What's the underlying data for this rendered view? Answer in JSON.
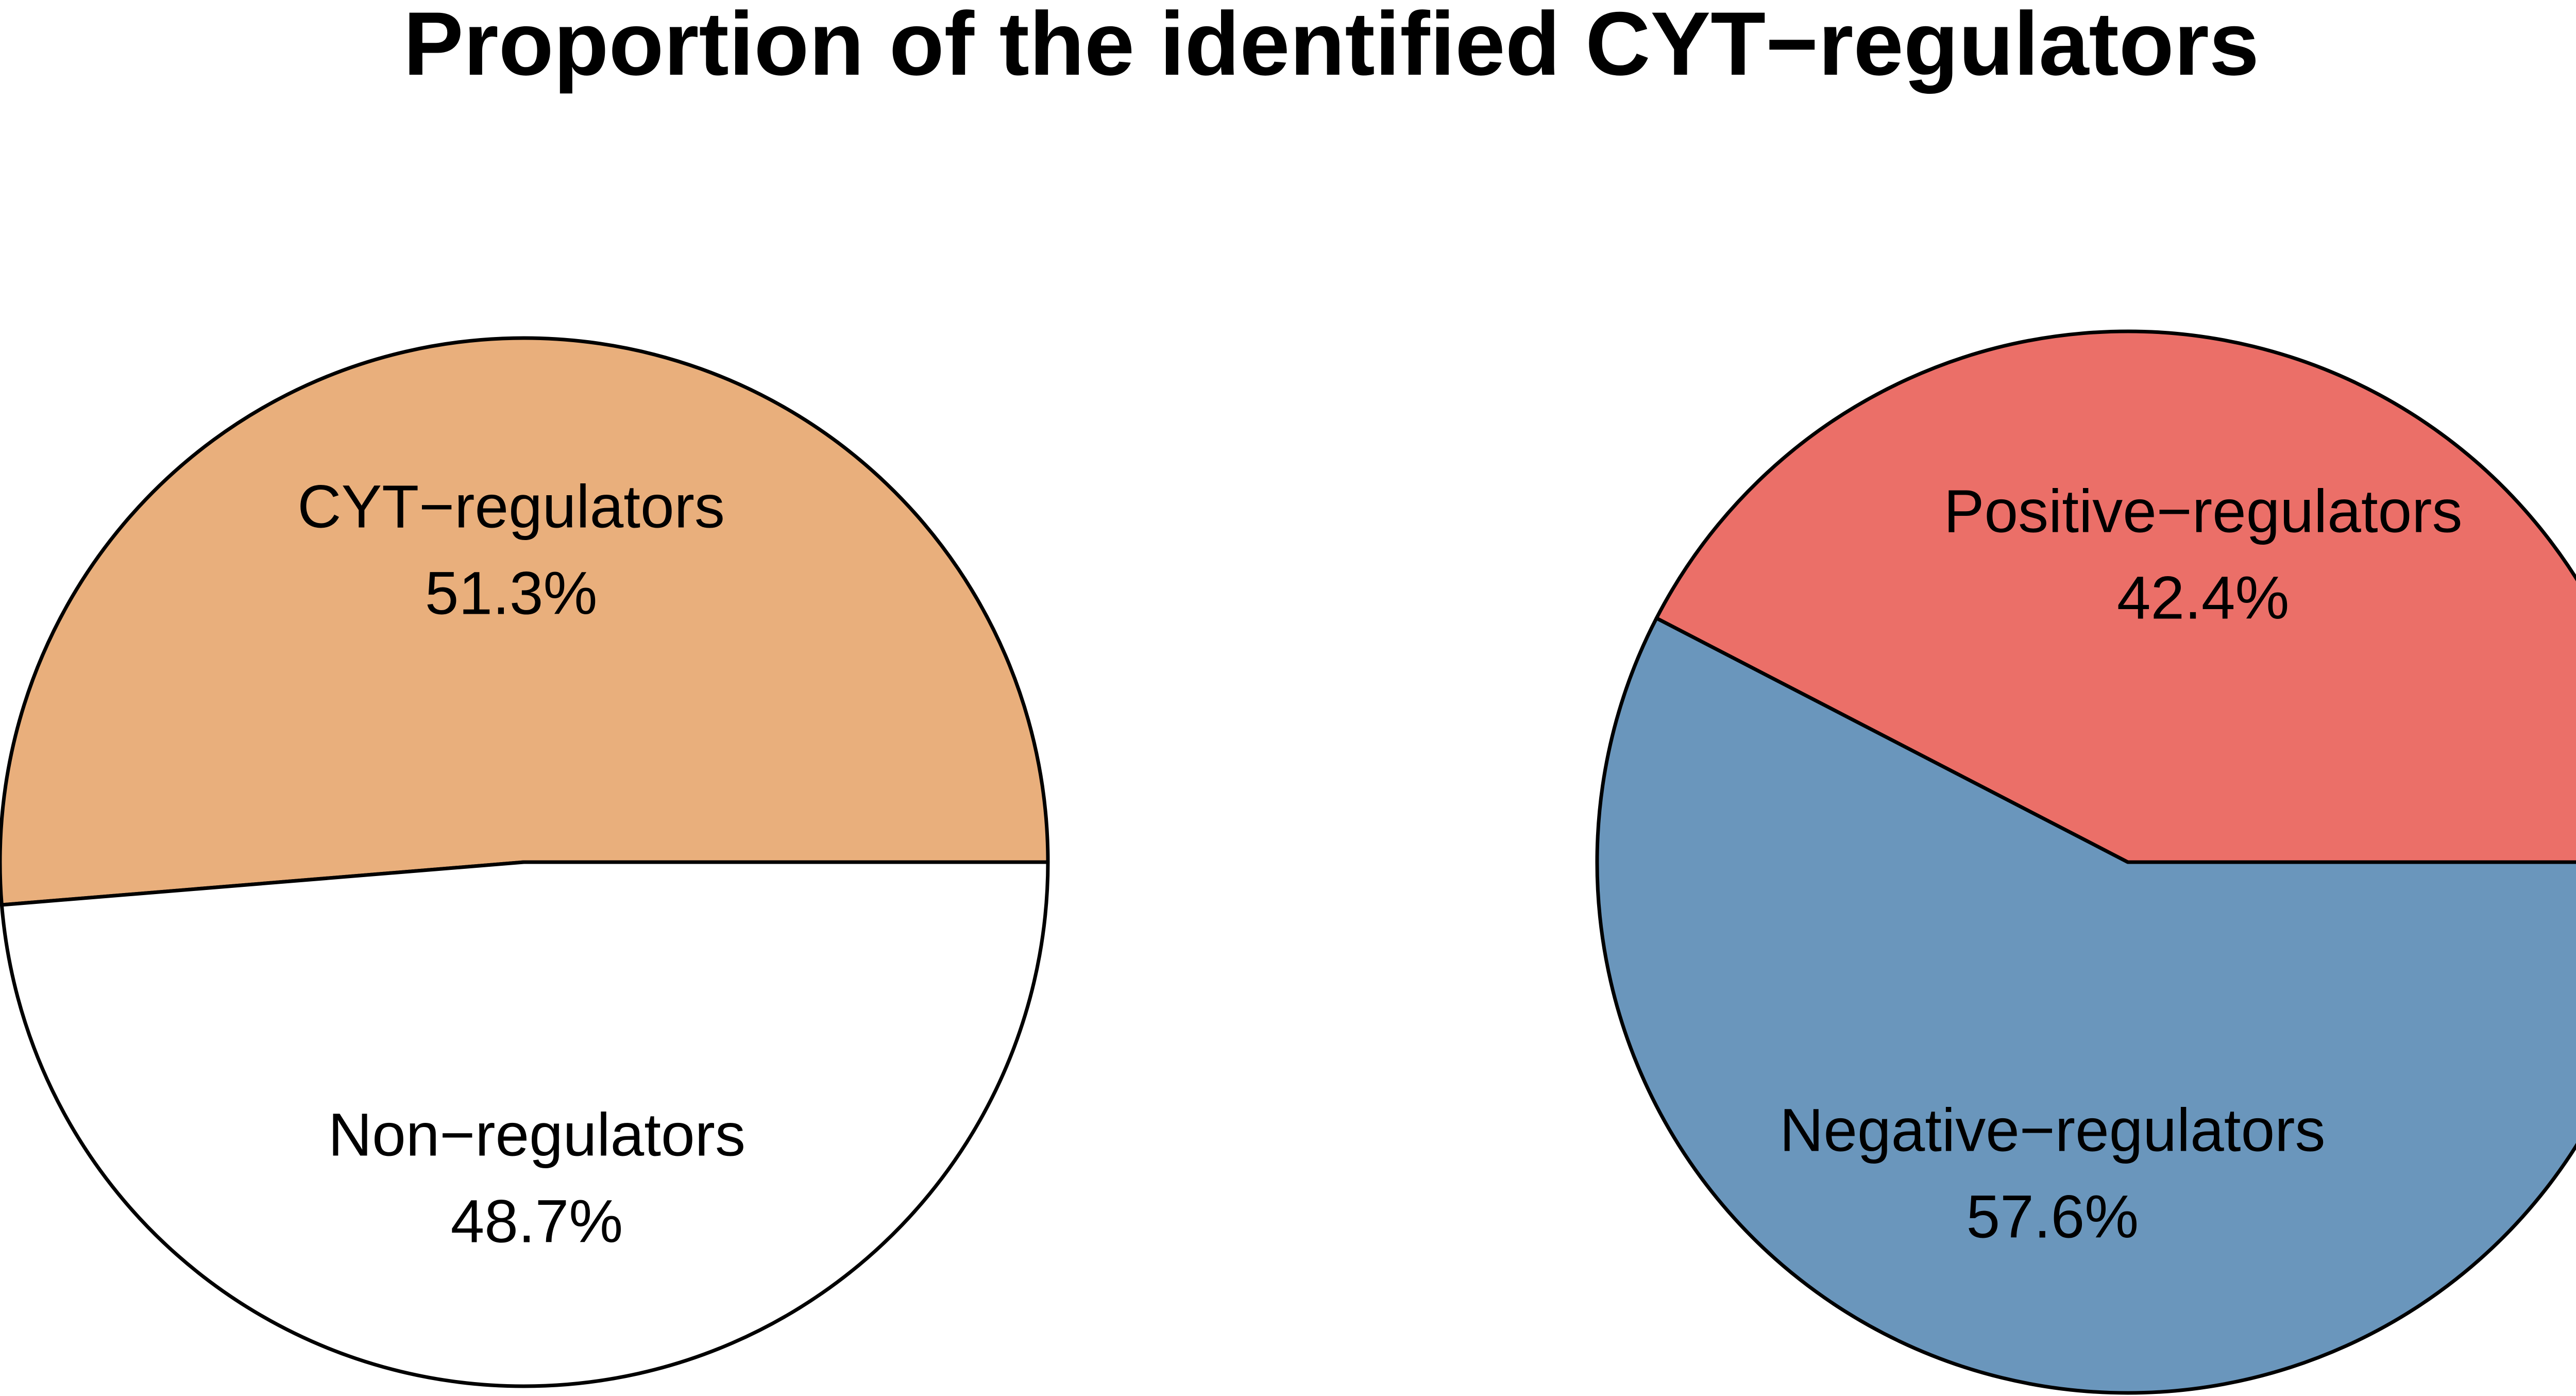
{
  "title": "Proportion of the identified CYT−regulators",
  "chart_data": [
    {
      "type": "pie",
      "slices": [
        {
          "label": "CYT−regulators",
          "value": 51.3,
          "percent_label": "51.3%",
          "color": "#E9AF7C"
        },
        {
          "label": "Non−regulators",
          "value": 48.7,
          "percent_label": "48.7%",
          "color": "#FFFFFF"
        }
      ]
    },
    {
      "type": "pie",
      "slices": [
        {
          "label": "Positive−regulators",
          "value": 42.4,
          "percent_label": "42.4%",
          "color": "#EB6F68"
        },
        {
          "label": "Negative−regulators",
          "value": 57.6,
          "percent_label": "57.6%",
          "color": "#6A96BC"
        }
      ]
    }
  ]
}
